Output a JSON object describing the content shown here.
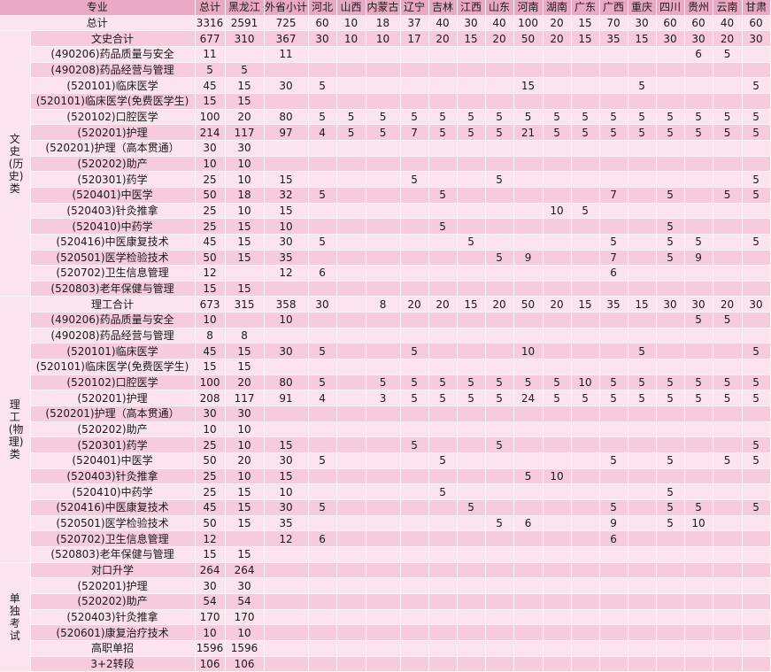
{
  "columns": [
    "专业",
    "总计",
    "黑龙江",
    "外省小计",
    "河北",
    "山西",
    "内蒙古",
    "辽宁",
    "吉林",
    "江西",
    "山东",
    "河南",
    "湖南",
    "广东",
    "广西",
    "重庆",
    "四川",
    "贵州",
    "云南",
    "甘肃"
  ],
  "total_row": [
    "总计",
    "3316",
    "2591",
    "725",
    "60",
    "10",
    "18",
    "37",
    "40",
    "30",
    "40",
    "100",
    "20",
    "15",
    "70",
    "30",
    "60",
    "60",
    "40",
    "60"
  ],
  "groups": [
    {
      "label": "文史(历史)类",
      "rows": [
        [
          "文史合计",
          "677",
          "310",
          "367",
          "30",
          "10",
          "10",
          "17",
          "20",
          "15",
          "20",
          "50",
          "20",
          "15",
          "35",
          "15",
          "30",
          "30",
          "20",
          "30"
        ],
        [
          "(490206)药品质量与安全",
          "11",
          "",
          "11",
          "",
          "",
          "",
          "",
          "",
          "",
          "",
          "",
          "",
          "",
          "",
          "",
          "",
          "6",
          "5",
          ""
        ],
        [
          "(490208)药品经营与管理",
          "5",
          "5",
          "",
          "",
          "",
          "",
          "",
          "",
          "",
          "",
          "",
          "",
          "",
          "",
          "",
          "",
          "",
          "",
          ""
        ],
        [
          "(520101)临床医学",
          "45",
          "15",
          "30",
          "5",
          "",
          "",
          "",
          "",
          "",
          "",
          "15",
          "",
          "",
          "",
          "5",
          "",
          "",
          "",
          "5"
        ],
        [
          "(520101)临床医学(免费医学生)",
          "15",
          "15",
          "",
          "",
          "",
          "",
          "",
          "",
          "",
          "",
          "",
          "",
          "",
          "",
          "",
          "",
          "",
          "",
          ""
        ],
        [
          "(520102)口腔医学",
          "100",
          "20",
          "80",
          "5",
          "5",
          "5",
          "5",
          "5",
          "5",
          "5",
          "5",
          "5",
          "5",
          "5",
          "5",
          "5",
          "5",
          "5",
          "5"
        ],
        [
          "(520201)护理",
          "214",
          "117",
          "97",
          "4",
          "5",
          "5",
          "7",
          "5",
          "5",
          "5",
          "21",
          "5",
          "5",
          "5",
          "5",
          "5",
          "5",
          "5",
          "5"
        ],
        [
          "(520201)护理（高本贯通）",
          "30",
          "30",
          "",
          "",
          "",
          "",
          "",
          "",
          "",
          "",
          "",
          "",
          "",
          "",
          "",
          "",
          "",
          "",
          ""
        ],
        [
          "(520202)助产",
          "10",
          "10",
          "",
          "",
          "",
          "",
          "",
          "",
          "",
          "",
          "",
          "",
          "",
          "",
          "",
          "",
          "",
          "",
          ""
        ],
        [
          "(520301)药学",
          "25",
          "10",
          "15",
          "",
          "",
          "",
          "5",
          "",
          "",
          "5",
          "",
          "",
          "",
          "",
          "",
          "",
          "",
          "",
          "5"
        ],
        [
          "(520401)中医学",
          "50",
          "18",
          "32",
          "5",
          "",
          "",
          "",
          "5",
          "",
          "",
          "",
          "",
          "",
          "7",
          "",
          "5",
          "",
          "5",
          "5"
        ],
        [
          "(520403)针灸推拿",
          "25",
          "10",
          "15",
          "",
          "",
          "",
          "",
          "",
          "",
          "",
          "",
          "10",
          "5",
          "",
          "",
          "",
          "",
          "",
          ""
        ],
        [
          "(520410)中药学",
          "25",
          "15",
          "10",
          "",
          "",
          "",
          "",
          "5",
          "",
          "",
          "",
          "",
          "",
          "",
          "",
          "5",
          "",
          "",
          ""
        ],
        [
          "(520416)中医康复技术",
          "45",
          "15",
          "30",
          "5",
          "",
          "",
          "",
          "",
          "5",
          "",
          "",
          "",
          "",
          "5",
          "",
          "5",
          "5",
          "",
          "5"
        ],
        [
          "(520501)医学检验技术",
          "50",
          "15",
          "35",
          "",
          "",
          "",
          "",
          "",
          "",
          "5",
          "9",
          "",
          "",
          "7",
          "",
          "5",
          "9",
          "",
          ""
        ],
        [
          "(520702)卫生信息管理",
          "12",
          "",
          "12",
          "6",
          "",
          "",
          "",
          "",
          "",
          "",
          "",
          "",
          "",
          "6",
          "",
          "",
          "",
          "",
          ""
        ],
        [
          "(520803)老年保健与管理",
          "15",
          "15",
          "",
          "",
          "",
          "",
          "",
          "",
          "",
          "",
          "",
          "",
          "",
          "",
          "",
          "",
          "",
          "",
          ""
        ]
      ]
    },
    {
      "label": "理工(物理)类",
      "rows": [
        [
          "理工合计",
          "673",
          "315",
          "358",
          "30",
          "",
          "8",
          "20",
          "20",
          "15",
          "20",
          "50",
          "20",
          "15",
          "35",
          "15",
          "30",
          "30",
          "20",
          "30"
        ],
        [
          "(490206)药品质量与安全",
          "10",
          "",
          "10",
          "",
          "",
          "",
          "",
          "",
          "",
          "",
          "",
          "",
          "",
          "",
          "",
          "",
          "5",
          "5",
          ""
        ],
        [
          "(490208)药品经营与管理",
          "8",
          "8",
          "",
          "",
          "",
          "",
          "",
          "",
          "",
          "",
          "",
          "",
          "",
          "",
          "",
          "",
          "",
          "",
          ""
        ],
        [
          "(520101)临床医学",
          "45",
          "15",
          "30",
          "5",
          "",
          "",
          "5",
          "",
          "",
          "",
          "10",
          "",
          "",
          "",
          "5",
          "",
          "",
          "",
          "5"
        ],
        [
          "(520101)临床医学(免费医学生)",
          "15",
          "15",
          "",
          "",
          "",
          "",
          "",
          "",
          "",
          "",
          "",
          "",
          "",
          "",
          "",
          "",
          "",
          "",
          ""
        ],
        [
          "(520102)口腔医学",
          "100",
          "20",
          "80",
          "5",
          "",
          "5",
          "5",
          "5",
          "5",
          "5",
          "5",
          "5",
          "10",
          "5",
          "5",
          "5",
          "5",
          "5",
          "5"
        ],
        [
          "(520201)护理",
          "208",
          "117",
          "91",
          "4",
          "",
          "3",
          "5",
          "5",
          "5",
          "5",
          "24",
          "5",
          "5",
          "5",
          "5",
          "5",
          "5",
          "5",
          "5"
        ],
        [
          "(520201)护理（高本贯通）",
          "30",
          "30",
          "",
          "",
          "",
          "",
          "",
          "",
          "",
          "",
          "",
          "",
          "",
          "",
          "",
          "",
          "",
          "",
          ""
        ],
        [
          "(520202)助产",
          "10",
          "10",
          "",
          "",
          "",
          "",
          "",
          "",
          "",
          "",
          "",
          "",
          "",
          "",
          "",
          "",
          "",
          "",
          ""
        ],
        [
          "(520301)药学",
          "25",
          "10",
          "15",
          "",
          "",
          "",
          "5",
          "",
          "",
          "5",
          "",
          "",
          "",
          "",
          "",
          "",
          "",
          "",
          "5"
        ],
        [
          "(520401)中医学",
          "50",
          "20",
          "30",
          "5",
          "",
          "",
          "",
          "5",
          "",
          "",
          "",
          "",
          "",
          "5",
          "",
          "5",
          "",
          "5",
          "5"
        ],
        [
          "(520403)针灸推拿",
          "25",
          "10",
          "15",
          "",
          "",
          "",
          "",
          "",
          "",
          "",
          "5",
          "10",
          "",
          "",
          "",
          "",
          "",
          "",
          ""
        ],
        [
          "(520410)中药学",
          "25",
          "15",
          "10",
          "",
          "",
          "",
          "",
          "5",
          "",
          "",
          "",
          "",
          "",
          "",
          "",
          "5",
          "",
          "",
          ""
        ],
        [
          "(520416)中医康复技术",
          "45",
          "15",
          "30",
          "5",
          "",
          "",
          "",
          "",
          "5",
          "",
          "",
          "",
          "",
          "5",
          "",
          "5",
          "5",
          "",
          "5"
        ],
        [
          "(520501)医学检验技术",
          "50",
          "15",
          "35",
          "",
          "",
          "",
          "",
          "",
          "",
          "5",
          "6",
          "",
          "",
          "9",
          "",
          "5",
          "10",
          "",
          ""
        ],
        [
          "(520702)卫生信息管理",
          "12",
          "",
          "12",
          "6",
          "",
          "",
          "",
          "",
          "",
          "",
          "",
          "",
          "",
          "6",
          "",
          "",
          "",
          "",
          ""
        ],
        [
          "(520803)老年保健与管理",
          "15",
          "15",
          "",
          "",
          "",
          "",
          "",
          "",
          "",
          "",
          "",
          "",
          "",
          "",
          "",
          "",
          "",
          "",
          ""
        ]
      ]
    },
    {
      "label": "单独考试",
      "rows": [
        [
          "对口升学",
          "264",
          "264"
        ],
        [
          "(520201)护理",
          "30",
          "30"
        ],
        [
          "(520202)助产",
          "54",
          "54"
        ],
        [
          "(520403)针灸推拿",
          "170",
          "170"
        ],
        [
          "(520601)康复治疗技术",
          "10",
          "10"
        ],
        [
          "高职单招",
          "1596",
          "1596"
        ],
        [
          "3+2转段",
          "106",
          "106"
        ]
      ]
    }
  ]
}
